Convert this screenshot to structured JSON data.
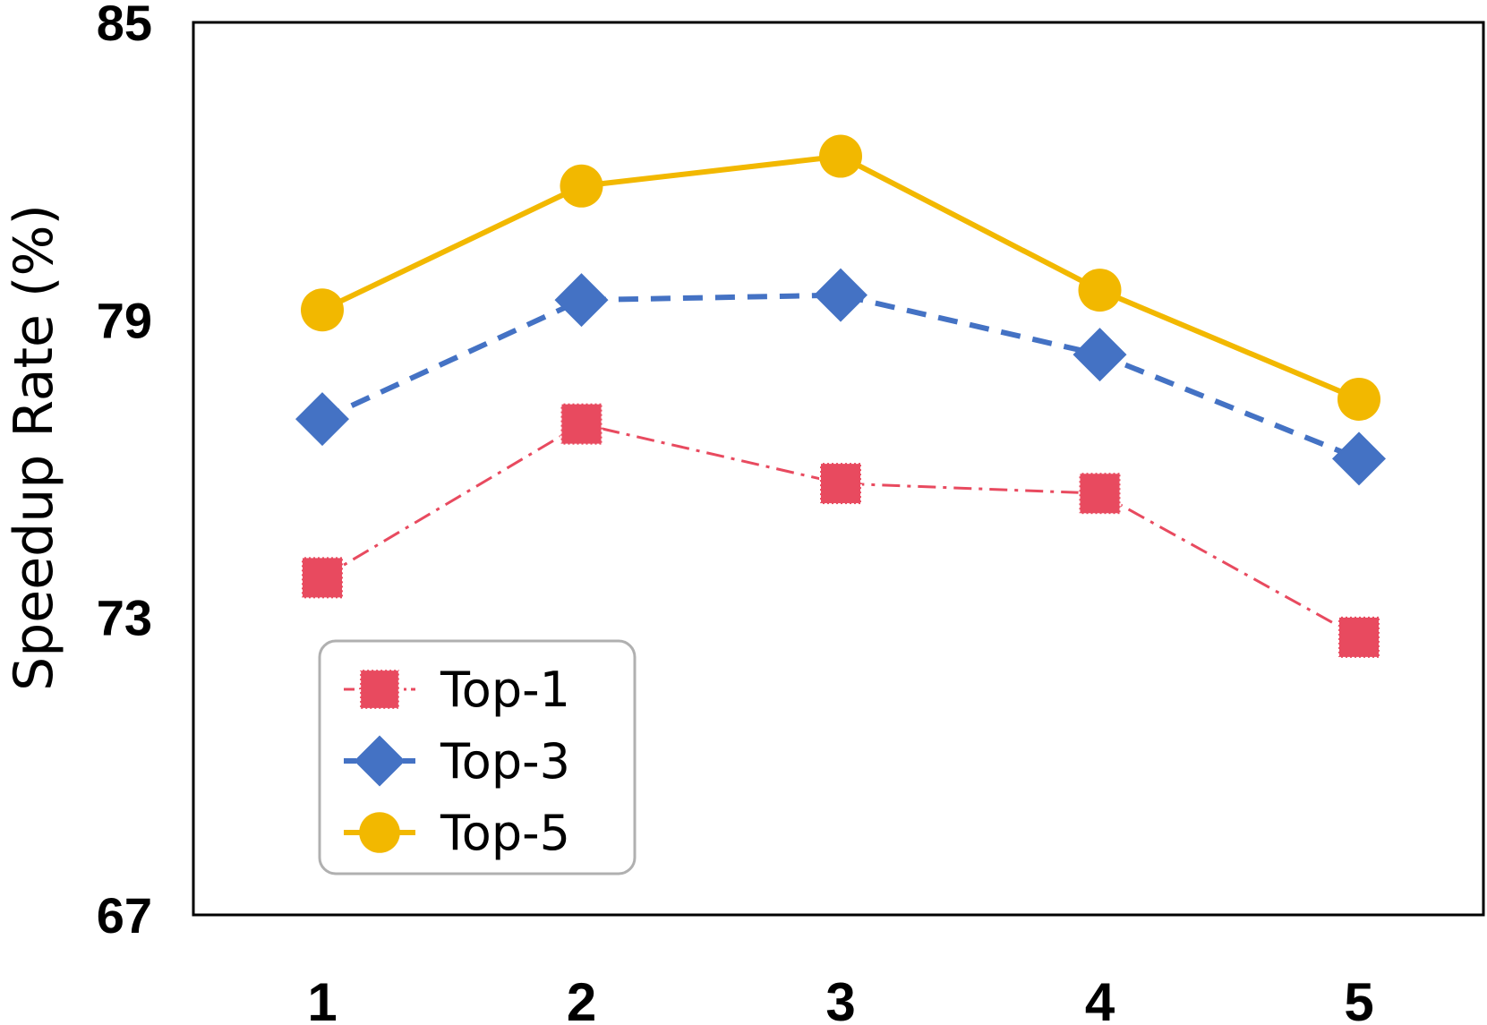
{
  "chart_data": {
    "type": "line",
    "title": "",
    "xlabel": "",
    "ylabel": "Speedup Rate (%)",
    "x": [
      1,
      2,
      3,
      4,
      5
    ],
    "x_tick_labels": [
      "1",
      "2",
      "3",
      "4",
      "5"
    ],
    "ylim": [
      67,
      85
    ],
    "y_ticks": [
      67,
      73,
      79,
      85
    ],
    "y_tick_labels": [
      "67",
      "73",
      "79",
      "85"
    ],
    "grid": false,
    "legend_position": "bottom-left",
    "series": [
      {
        "name": "Top-1",
        "values": [
          73.8,
          76.9,
          75.7,
          75.5,
          72.6
        ],
        "color": "#E84A5F",
        "marker": "square",
        "line_style": "dash-dot"
      },
      {
        "name": "Top-3",
        "values": [
          77.0,
          79.4,
          79.5,
          78.3,
          76.2
        ],
        "color": "#4472C4",
        "marker": "diamond",
        "line_style": "dashed"
      },
      {
        "name": "Top-5",
        "values": [
          79.2,
          81.7,
          82.3,
          79.6,
          77.4
        ],
        "color": "#F2B800",
        "marker": "circle",
        "line_style": "solid"
      }
    ]
  }
}
